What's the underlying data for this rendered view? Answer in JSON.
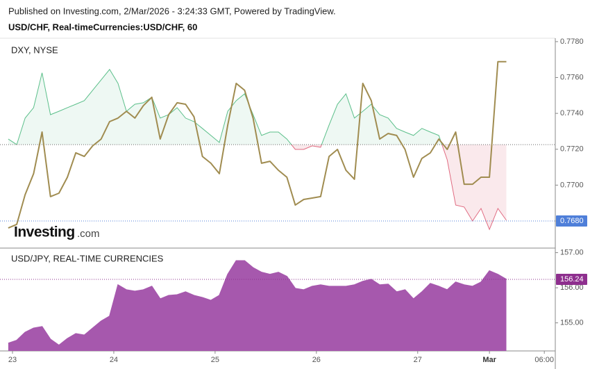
{
  "header": {
    "line1": "Published on Investing.com, 2/Mar/2026 - 3:24:33 GMT, Powered by TradingView.",
    "line2": "USD/CHF, Real-timeCurrencies:USD/CHF, 60"
  },
  "chart_data": [
    {
      "type": "line",
      "title": "DXY, NYSE",
      "watermark": [
        "Investing",
        ".com"
      ],
      "x": [
        -1,
        1,
        3,
        5,
        7,
        9,
        11,
        13,
        15,
        17,
        19,
        21,
        23,
        25,
        27,
        29,
        31,
        33,
        35,
        37,
        39,
        41,
        43,
        45,
        47,
        49,
        51,
        53,
        55,
        57,
        59,
        61,
        63,
        65,
        67,
        69,
        71,
        73,
        75,
        77,
        79,
        81,
        83,
        85,
        87,
        89,
        91,
        93,
        95,
        97,
        99,
        101,
        103,
        105,
        107,
        109,
        111,
        113,
        115,
        117
      ],
      "xlim": [
        -2.96,
        128.6
      ],
      "ylim": [
        0.76649,
        0.77819
      ],
      "yticks": [
        {
          "value": 0.768,
          "label": "0.7680"
        },
        {
          "value": 0.77,
          "label": "0.7700"
        },
        {
          "value": 0.772,
          "label": "0.7720"
        },
        {
          "value": 0.774,
          "label": "0.7740"
        },
        {
          "value": 0.776,
          "label": "0.7760"
        },
        {
          "value": 0.778,
          "label": "0.7780"
        }
      ],
      "price_label": {
        "value": 0.768,
        "label": "0.7680",
        "color": "#4f7fd9"
      },
      "series": [
        {
          "color": "#a08c50",
          "values": [
            0.76761,
            0.76781,
            0.76947,
            0.77064,
            0.77296,
            0.76936,
            0.76955,
            0.77044,
            0.7718,
            0.7716,
            0.77219,
            0.77257,
            0.77354,
            0.77374,
            0.77412,
            0.77374,
            0.77443,
            0.7749,
            0.77257,
            0.77393,
            0.77459,
            0.77451,
            0.77381,
            0.7716,
            0.77122,
            0.77064,
            0.77335,
            0.77567,
            0.77529,
            0.77374,
            0.77122,
            0.77133,
            0.77083,
            0.77044,
            0.76889,
            0.7692,
            0.76928,
            0.76936,
            0.7716,
            0.77199,
            0.77083,
            0.77033,
            0.77567,
            0.77471,
            0.77257,
            0.77288,
            0.77277,
            0.77199,
            0.77044,
            0.77149,
            0.7718,
            0.77257,
            0.77199,
            0.77296,
            0.77005,
            0.77005,
            0.77044,
            0.77044,
            0.77688,
            0.77688
          ]
        },
        {
          "style": "baseline",
          "baseline": 0.77226,
          "color": "#5bbf8a",
          "color_below": "#e06a80",
          "values": [
            0.77257,
            0.77226,
            0.77374,
            0.77432,
            0.77626,
            0.77393,
            0.77412,
            0.77432,
            0.77451,
            0.77471,
            0.77529,
            0.77587,
            0.77645,
            0.77567,
            0.77412,
            0.77451,
            0.77459,
            0.7749,
            0.77374,
            0.77393,
            0.77432,
            0.77374,
            0.77354,
            0.77316,
            0.77277,
            0.77238,
            0.77412,
            0.77471,
            0.77509,
            0.77393,
            0.77277,
            0.77296,
            0.77296,
            0.77257,
            0.77199,
            0.77199,
            0.77219,
            0.77211,
            0.77335,
            0.77451,
            0.77509,
            0.77374,
            0.77412,
            0.77451,
            0.77393,
            0.77374,
            0.77316,
            0.77296,
            0.77277,
            0.77316,
            0.77296,
            0.77277,
            0.77141,
            0.76889,
            0.76878,
            0.768,
            0.7687,
            0.76753,
            0.7687,
            0.76804
          ]
        }
      ]
    },
    {
      "type": "area",
      "title": "USD/JPY, REAL-TIME CURRENCIES",
      "x": [
        -1,
        1,
        3,
        5,
        7,
        9,
        11,
        13,
        15,
        17,
        19,
        21,
        23,
        25,
        27,
        29,
        31,
        33,
        35,
        37,
        39,
        41,
        43,
        45,
        47,
        49,
        51,
        53,
        55,
        57,
        59,
        61,
        63,
        65,
        67,
        69,
        71,
        73,
        75,
        77,
        79,
        81,
        83,
        85,
        87,
        89,
        91,
        93,
        95,
        97,
        99,
        101,
        103,
        105,
        107,
        109,
        111,
        113,
        115,
        117
      ],
      "xlim": [
        -2.96,
        128.6
      ],
      "xticks": [
        {
          "value": 0,
          "label": "23"
        },
        {
          "value": 24,
          "label": "24"
        },
        {
          "value": 48,
          "label": "25"
        },
        {
          "value": 72,
          "label": "26"
        },
        {
          "value": 96,
          "label": "27"
        },
        {
          "value": 113,
          "label": "Mar"
        },
        {
          "value": 126,
          "label": "06:00"
        }
      ],
      "ylim": [
        154.2,
        157.13
      ],
      "yticks": [
        {
          "value": 155,
          "label": "155.00"
        },
        {
          "value": 156,
          "label": "156.00"
        },
        {
          "value": 157,
          "label": "157.00"
        }
      ],
      "price_label": {
        "value": 156.24,
        "label": "156.24",
        "color": "#8e2f8e"
      },
      "series": [
        {
          "color": "#a658ad",
          "values": [
            154.42,
            154.5,
            154.73,
            154.85,
            154.89,
            154.53,
            154.36,
            154.55,
            154.69,
            154.65,
            154.85,
            155.05,
            155.19,
            156.08,
            155.94,
            155.9,
            155.94,
            156.04,
            155.68,
            155.78,
            155.8,
            155.88,
            155.78,
            155.72,
            155.64,
            155.78,
            156.38,
            156.77,
            156.77,
            156.57,
            156.44,
            156.38,
            156.44,
            156.32,
            155.98,
            155.94,
            156.04,
            156.08,
            156.04,
            156.04,
            156.04,
            156.08,
            156.18,
            156.24,
            156.08,
            156.1,
            155.88,
            155.94,
            155.68,
            155.88,
            156.12,
            156.04,
            155.94,
            156.16,
            156.08,
            156.04,
            156.16,
            156.48,
            156.38,
            156.24
          ]
        }
      ]
    }
  ]
}
